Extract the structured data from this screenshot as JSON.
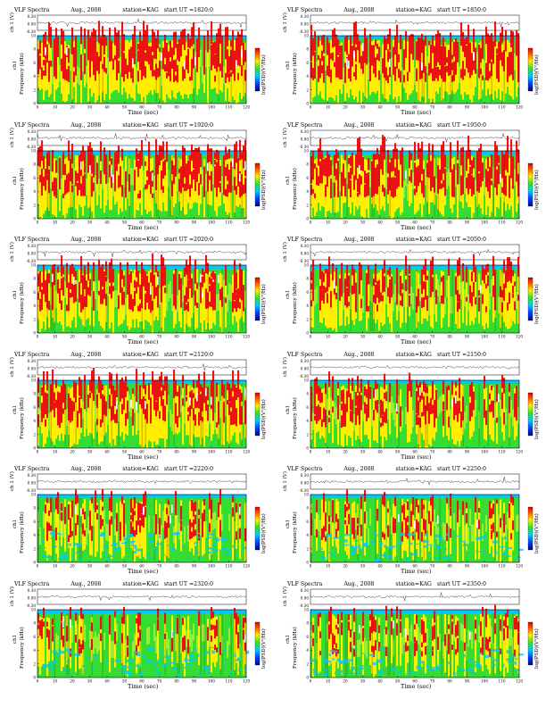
{
  "common": {
    "title": "VLF Spectra",
    "date": "Aug., 2008",
    "station": "station=KAG",
    "start_prefix": "start  UT  =",
    "ch_label": "ch 1 (V)",
    "ch_ticks": [
      "0.30",
      "0.00",
      "-0.30"
    ],
    "ylabel": "Frequency  (kHz)",
    "ylabel_ch": "ch1",
    "y_ticks": [
      "0",
      "2",
      "4",
      "6",
      "8",
      "10"
    ],
    "xlabel": "Time  (sec)",
    "x_ticks": [
      "0",
      "10",
      "20",
      "30",
      "40",
      "50",
      "60",
      "70",
      "80",
      "90",
      "100",
      "110",
      "120"
    ],
    "cbar_label": "log(PSD)(V²/Hz)"
  },
  "colors": {
    "low": "#00c8ff",
    "mid": "#33dd33",
    "high": "#ffee00",
    "peak": "#ee1111"
  },
  "chart_data": [
    {
      "type": "heatmap",
      "start_ut": "1820:0",
      "xlim": [
        0,
        120
      ],
      "ylim": [
        0,
        10
      ],
      "activity": 0.85
    },
    {
      "type": "heatmap",
      "start_ut": "1850:0",
      "xlim": [
        0,
        120
      ],
      "ylim": [
        0,
        10
      ],
      "activity": 0.85
    },
    {
      "type": "heatmap",
      "start_ut": "1920:0",
      "xlim": [
        0,
        120
      ],
      "ylim": [
        0,
        10
      ],
      "activity": 0.82
    },
    {
      "type": "heatmap",
      "start_ut": "1950:0",
      "xlim": [
        0,
        120
      ],
      "ylim": [
        0,
        10
      ],
      "activity": 0.84
    },
    {
      "type": "heatmap",
      "start_ut": "2020:0",
      "xlim": [
        0,
        120
      ],
      "ylim": [
        0,
        10
      ],
      "activity": 0.78
    },
    {
      "type": "heatmap",
      "start_ut": "2050:0",
      "xlim": [
        0,
        120
      ],
      "ylim": [
        0,
        10
      ],
      "activity": 0.7
    },
    {
      "type": "heatmap",
      "start_ut": "2120:0",
      "xlim": [
        0,
        120
      ],
      "ylim": [
        0,
        10
      ],
      "activity": 0.75
    },
    {
      "type": "heatmap",
      "start_ut": "2150:0",
      "xlim": [
        0,
        120
      ],
      "ylim": [
        0,
        10
      ],
      "activity": 0.65
    },
    {
      "type": "heatmap",
      "start_ut": "2220:0",
      "xlim": [
        0,
        120
      ],
      "ylim": [
        0,
        10
      ],
      "activity": 0.5
    },
    {
      "type": "heatmap",
      "start_ut": "2250:0",
      "xlim": [
        0,
        120
      ],
      "ylim": [
        0,
        10
      ],
      "activity": 0.45
    },
    {
      "type": "heatmap",
      "start_ut": "2320:0",
      "xlim": [
        0,
        120
      ],
      "ylim": [
        0,
        10
      ],
      "activity": 0.42
    },
    {
      "type": "heatmap",
      "start_ut": "2350:0",
      "xlim": [
        0,
        120
      ],
      "ylim": [
        0,
        10
      ],
      "activity": 0.48
    }
  ]
}
